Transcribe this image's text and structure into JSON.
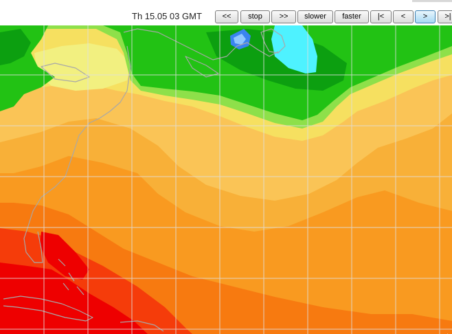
{
  "header": {
    "timestamp": "Th 15.05 03 GMT"
  },
  "controls": [
    {
      "id": "rewind",
      "label": "<<"
    },
    {
      "id": "stop",
      "label": "stop"
    },
    {
      "id": "play",
      "label": ">>"
    },
    {
      "id": "slower",
      "label": "slower"
    },
    {
      "id": "faster",
      "label": "faster"
    },
    {
      "id": "first",
      "label": "|<"
    },
    {
      "id": "prev",
      "label": "<"
    },
    {
      "id": "next",
      "label": ">"
    },
    {
      "id": "last",
      "label": ">|"
    }
  ],
  "map": {
    "palette": {
      "deep_red": "#ee0000",
      "red_orange": "#f53c0a",
      "orange": "#f77a10",
      "light_orange": "#f99a20",
      "amber": "#f8b038",
      "pale_orange": "#fac456",
      "yellow": "#f6e060",
      "pale_yellow": "#f2f080",
      "light_green": "#8ee04a",
      "green": "#22c214",
      "dark_green": "#0c9f10",
      "cyan": "#4ef2ff",
      "blue": "#3a84f0",
      "grid": "#e0e0e0",
      "coast": "#a8a8a8"
    },
    "grid_visible": true
  }
}
